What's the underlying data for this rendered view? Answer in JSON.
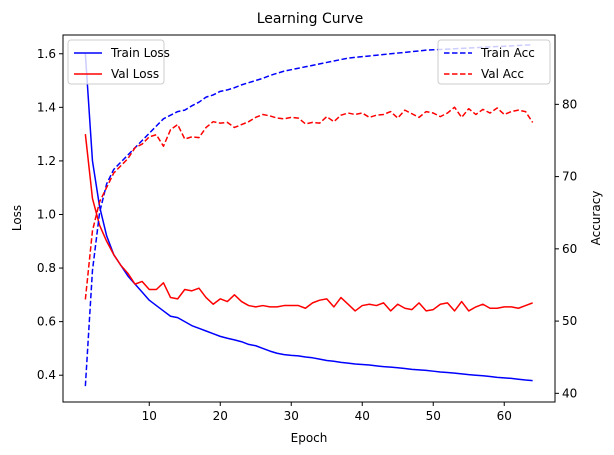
{
  "chart_data": {
    "type": "line",
    "title": "Learning Curve",
    "xlabel": "Epoch",
    "ylabel_left": "Loss",
    "ylabel_right": "Accuracy",
    "xlim": [
      -2.15,
      67.15
    ],
    "ylim_left": [
      0.3,
      1.67
    ],
    "ylim_right": [
      38.8,
      89.6
    ],
    "xticks": [
      10,
      20,
      30,
      40,
      50,
      60
    ],
    "yticks_left": [
      0.4,
      0.6,
      0.8,
      1.0,
      1.2,
      1.4,
      1.6
    ],
    "yticks_right": [
      40,
      50,
      60,
      70,
      80
    ],
    "grid": false,
    "legend_left_placement": "upper-left",
    "legend_right_placement": "upper-right",
    "x": [
      1,
      2,
      3,
      4,
      5,
      6,
      7,
      8,
      9,
      10,
      11,
      12,
      13,
      14,
      15,
      16,
      17,
      18,
      19,
      20,
      21,
      22,
      23,
      24,
      25,
      26,
      27,
      28,
      29,
      30,
      31,
      32,
      33,
      34,
      35,
      36,
      37,
      38,
      39,
      40,
      41,
      42,
      43,
      44,
      45,
      46,
      47,
      48,
      49,
      50,
      51,
      52,
      53,
      54,
      55,
      56,
      57,
      58,
      59,
      60,
      61,
      62,
      63,
      64
    ],
    "series": [
      {
        "name": "Train Loss",
        "axis": "left",
        "color": "#0000ff",
        "style": "solid",
        "values": [
          1.6,
          1.2,
          1.03,
          0.92,
          0.85,
          0.81,
          0.77,
          0.74,
          0.71,
          0.68,
          0.66,
          0.64,
          0.62,
          0.615,
          0.6,
          0.585,
          0.575,
          0.565,
          0.555,
          0.545,
          0.538,
          0.532,
          0.525,
          0.515,
          0.51,
          0.5,
          0.49,
          0.482,
          0.477,
          0.474,
          0.472,
          0.468,
          0.465,
          0.46,
          0.455,
          0.452,
          0.448,
          0.445,
          0.442,
          0.44,
          0.438,
          0.435,
          0.432,
          0.43,
          0.428,
          0.425,
          0.422,
          0.42,
          0.418,
          0.415,
          0.412,
          0.41,
          0.408,
          0.405,
          0.402,
          0.4,
          0.398,
          0.395,
          0.392,
          0.39,
          0.388,
          0.385,
          0.382,
          0.38
        ]
      },
      {
        "name": "Val Loss",
        "axis": "left",
        "color": "#ff0000",
        "style": "solid",
        "values": [
          1.3,
          1.06,
          0.96,
          0.9,
          0.85,
          0.81,
          0.78,
          0.74,
          0.75,
          0.72,
          0.72,
          0.745,
          0.69,
          0.685,
          0.72,
          0.715,
          0.725,
          0.69,
          0.665,
          0.685,
          0.675,
          0.7,
          0.675,
          0.66,
          0.655,
          0.66,
          0.655,
          0.655,
          0.66,
          0.66,
          0.66,
          0.65,
          0.67,
          0.68,
          0.685,
          0.655,
          0.69,
          0.665,
          0.64,
          0.66,
          0.665,
          0.66,
          0.67,
          0.64,
          0.665,
          0.65,
          0.645,
          0.67,
          0.64,
          0.645,
          0.665,
          0.67,
          0.64,
          0.675,
          0.64,
          0.655,
          0.665,
          0.65,
          0.65,
          0.655,
          0.655,
          0.65,
          0.66,
          0.67
        ]
      },
      {
        "name": "Train Acc",
        "axis": "right",
        "color": "#0000ff",
        "style": "dashed",
        "values": [
          41,
          57,
          65,
          69,
          71,
          72,
          73,
          74,
          75,
          76,
          77,
          78,
          78.5,
          79,
          79.2,
          79.8,
          80.3,
          81,
          81.3,
          81.8,
          82,
          82.3,
          82.7,
          83,
          83.3,
          83.6,
          84,
          84.3,
          84.6,
          84.8,
          85,
          85.2,
          85.4,
          85.6,
          85.8,
          86,
          86.2,
          86.4,
          86.5,
          86.6,
          86.7,
          86.8,
          86.9,
          87,
          87.1,
          87.2,
          87.3,
          87.4,
          87.5,
          87.55,
          87.6,
          87.65,
          87.7,
          87.75,
          87.8,
          87.85,
          87.9,
          87.95,
          88,
          88.05,
          88.1,
          88.15,
          88.2,
          88.25
        ]
      },
      {
        "name": "Val Acc",
        "axis": "right",
        "color": "#ff0000",
        "style": "dashed",
        "values": [
          53,
          62.5,
          66.5,
          68.5,
          70.5,
          71.5,
          72.5,
          74,
          74.5,
          75.5,
          75.8,
          74.2,
          76.5,
          77.2,
          75.2,
          75.5,
          75.4,
          76.8,
          77.6,
          77.4,
          77.5,
          76.8,
          77.2,
          77.6,
          78.2,
          78.6,
          78.4,
          78.1,
          78.0,
          78.2,
          78.1,
          77.3,
          77.5,
          77.4,
          78.3,
          77.6,
          78.5,
          78.8,
          78.6,
          78.8,
          78.2,
          78.5,
          78.6,
          79.0,
          78.1,
          79.2,
          78.7,
          78.2,
          79.0,
          78.8,
          78.3,
          78.8,
          79.6,
          78.2,
          79.4,
          78.6,
          79.3,
          78.8,
          79.5,
          78.6,
          79.0,
          79.2,
          79.0,
          77.5
        ]
      }
    ]
  }
}
